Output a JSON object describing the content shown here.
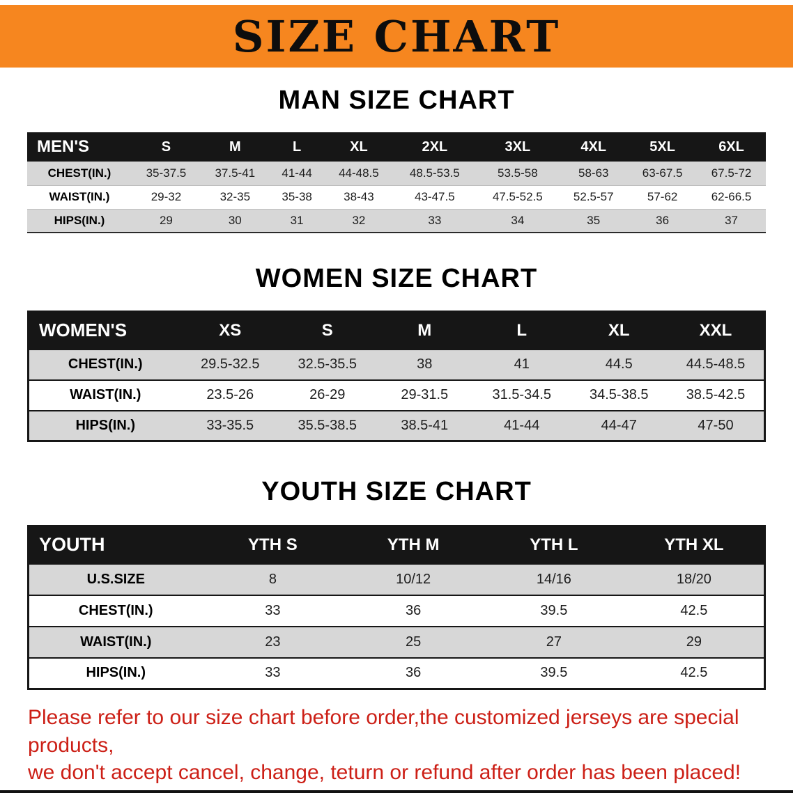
{
  "banner": {
    "title": "SIZE CHART"
  },
  "colors": {
    "banner_bg": "#f6861f",
    "table_header_bg": "#161616",
    "row_stripe": "#d7d7d7",
    "note_red": "#cc1f16"
  },
  "men": {
    "heading": "MAN SIZE CHART",
    "header": [
      "MEN'S",
      "S",
      "M",
      "L",
      "XL",
      "2XL",
      "3XL",
      "4XL",
      "5XL",
      "6XL"
    ],
    "rows": [
      {
        "label": "CHEST(IN.)",
        "values": [
          "35-37.5",
          "37.5-41",
          "41-44",
          "44-48.5",
          "48.5-53.5",
          "53.5-58",
          "58-63",
          "63-67.5",
          "67.5-72"
        ]
      },
      {
        "label": "WAIST(IN.)",
        "values": [
          "29-32",
          "32-35",
          "35-38",
          "38-43",
          "43-47.5",
          "47.5-52.5",
          "52.5-57",
          "57-62",
          "62-66.5"
        ]
      },
      {
        "label": "HIPS(IN.)",
        "values": [
          "29",
          "30",
          "31",
          "32",
          "33",
          "34",
          "35",
          "36",
          "37"
        ]
      }
    ]
  },
  "women": {
    "heading": "WOMEN SIZE CHART",
    "header": [
      "WOMEN'S",
      "XS",
      "S",
      "M",
      "L",
      "XL",
      "XXL"
    ],
    "rows": [
      {
        "label": "CHEST(IN.)",
        "values": [
          "29.5-32.5",
          "32.5-35.5",
          "38",
          "41",
          "44.5",
          "44.5-48.5"
        ]
      },
      {
        "label": "WAIST(IN.)",
        "values": [
          "23.5-26",
          "26-29",
          "29-31.5",
          "31.5-34.5",
          "34.5-38.5",
          "38.5-42.5"
        ]
      },
      {
        "label": "HIPS(IN.)",
        "values": [
          "33-35.5",
          "35.5-38.5",
          "38.5-41",
          "41-44",
          "44-47",
          "47-50"
        ]
      }
    ]
  },
  "youth": {
    "heading": "YOUTH SIZE CHART",
    "header": [
      "YOUTH",
      "YTH S",
      "YTH M",
      "YTH L",
      "YTH XL"
    ],
    "rows": [
      {
        "label": "U.S.SIZE",
        "values": [
          "8",
          "10/12",
          "14/16",
          "18/20"
        ]
      },
      {
        "label": "CHEST(IN.)",
        "values": [
          "33",
          "36",
          "39.5",
          "42.5"
        ]
      },
      {
        "label": "WAIST(IN.)",
        "values": [
          "23",
          "25",
          "27",
          "29"
        ]
      },
      {
        "label": "HIPS(IN.)",
        "values": [
          "33",
          "36",
          "39.5",
          "42.5"
        ]
      }
    ]
  },
  "note": {
    "line1": "Please refer to our size chart before order,the customized jerseys are special products,",
    "line2": "we don't accept cancel, change, teturn or refund after order has been placed!"
  }
}
